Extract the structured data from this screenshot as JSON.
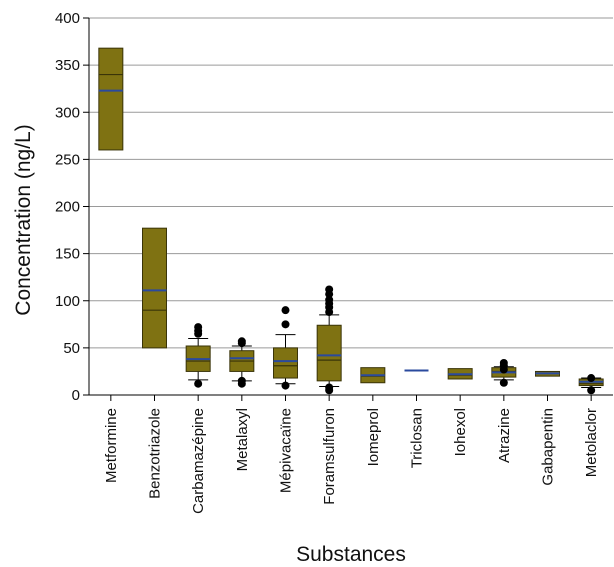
{
  "chart_data": {
    "type": "box",
    "xlabel": "Substances",
    "ylabel": "Concentration (ng/L)",
    "ylim": [
      0,
      400
    ],
    "yticks": [
      0,
      50,
      100,
      150,
      200,
      250,
      300,
      350,
      400
    ],
    "grid": "horizontal",
    "colors": {
      "box_fill": "#7f7212",
      "box_edge": "#3a3408",
      "mean_line": "#2a4a9e",
      "median_line": "#3a3408",
      "outlier": "#000000"
    },
    "categories": [
      "Metformine",
      "Benzotriazole",
      "Carbamazépine",
      "Metalaxyl",
      "Mépivacaïne",
      "Foramsulfuron",
      "Iomeprol",
      "Triclosan",
      "Iohexol",
      "Atrazine",
      "Gabapentin",
      "Metolaclor"
    ],
    "boxes": [
      {
        "name": "Metformine",
        "q1": 260,
        "median": 340,
        "q3": 368,
        "mean": 323,
        "whisker_low": null,
        "whisker_high": null,
        "outliers": []
      },
      {
        "name": "Benzotriazole",
        "q1": 50,
        "median": 90,
        "q3": 177,
        "mean": 111,
        "whisker_low": null,
        "whisker_high": null,
        "outliers": []
      },
      {
        "name": "Carbamazépine",
        "q1": 25,
        "median": 36,
        "q3": 52,
        "mean": 38,
        "whisker_low": 16,
        "whisker_high": 60,
        "outliers": [
          12,
          65,
          68,
          72
        ]
      },
      {
        "name": "Metalaxyl",
        "q1": 25,
        "median": 36,
        "q3": 47,
        "mean": 39,
        "whisker_low": 15,
        "whisker_high": 52,
        "outliers": [
          12,
          15,
          55,
          57
        ]
      },
      {
        "name": "Mépivacaïne",
        "q1": 18,
        "median": 31,
        "q3": 50,
        "mean": 36,
        "whisker_low": 12,
        "whisker_high": 64,
        "outliers": [
          10,
          75,
          90
        ]
      },
      {
        "name": "Foramsulfuron",
        "q1": 15,
        "median": 37,
        "q3": 74,
        "mean": 42,
        "whisker_low": 9,
        "whisker_high": 85,
        "outliers": [
          5,
          8,
          88,
          93,
          97,
          101,
          107,
          112
        ]
      },
      {
        "name": "Iomeprol",
        "q1": 13,
        "median": 20,
        "q3": 29,
        "mean": 21,
        "whisker_low": null,
        "whisker_high": null,
        "outliers": []
      },
      {
        "name": "Triclosan",
        "q1": 26,
        "median": 26,
        "q3": 26,
        "mean": 26,
        "whisker_low": null,
        "whisker_high": null,
        "outliers": []
      },
      {
        "name": "Iohexol",
        "q1": 17,
        "median": 21,
        "q3": 28,
        "mean": 22,
        "whisker_low": null,
        "whisker_high": null,
        "outliers": []
      },
      {
        "name": "Atrazine",
        "q1": 19,
        "median": 25,
        "q3": 29,
        "mean": 24,
        "whisker_low": 16,
        "whisker_high": 30,
        "outliers": [
          13,
          27,
          31,
          34
        ]
      },
      {
        "name": "Gabapentin",
        "q1": 20,
        "median": 23,
        "q3": 25,
        "mean": 23,
        "whisker_low": null,
        "whisker_high": null,
        "outliers": []
      },
      {
        "name": "Metolaclor",
        "q1": 10,
        "median": 12,
        "q3": 17,
        "mean": 14,
        "whisker_low": 8,
        "whisker_high": 18,
        "outliers": [
          5,
          18
        ]
      }
    ]
  }
}
